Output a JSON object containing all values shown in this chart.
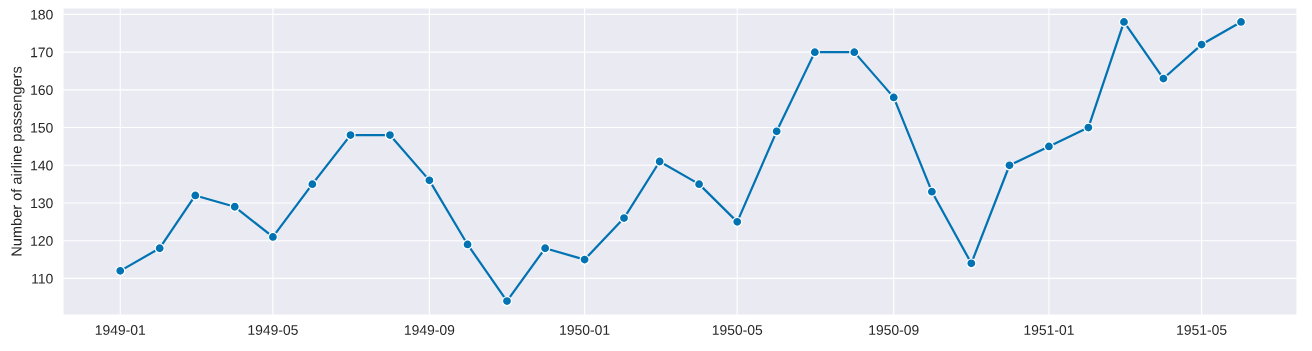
{
  "chart_data": {
    "type": "line",
    "ylabel": "Number of airline passengers",
    "x": [
      "1949-01",
      "1949-02",
      "1949-03",
      "1949-04",
      "1949-05",
      "1949-06",
      "1949-07",
      "1949-08",
      "1949-09",
      "1949-10",
      "1949-11",
      "1949-12",
      "1950-01",
      "1950-02",
      "1950-03",
      "1950-04",
      "1950-05",
      "1950-06",
      "1950-07",
      "1950-08",
      "1950-09",
      "1950-10",
      "1950-11",
      "1950-12",
      "1951-01",
      "1951-02",
      "1951-03",
      "1951-04",
      "1951-05",
      "1951-06"
    ],
    "series": [
      {
        "color": "#0173b2",
        "values": [
          112,
          118,
          132,
          129,
          121,
          135,
          148,
          148,
          136,
          119,
          104,
          118,
          115,
          126,
          141,
          135,
          125,
          149,
          170,
          170,
          158,
          133,
          114,
          140,
          145,
          150,
          178,
          163,
          172,
          178
        ]
      }
    ],
    "xlim": [
      "1948-11-17",
      "1951-07-15"
    ],
    "xticks": [
      "1949-01",
      "1949-05",
      "1949-09",
      "1950-01",
      "1950-05",
      "1950-09",
      "1951-01",
      "1951-05"
    ],
    "ylim": [
      100.3,
      181.7
    ],
    "yticks": [
      110,
      120,
      130,
      140,
      150,
      160,
      170,
      180
    ],
    "grid": true,
    "marker": "circle",
    "line_style": "solid"
  }
}
